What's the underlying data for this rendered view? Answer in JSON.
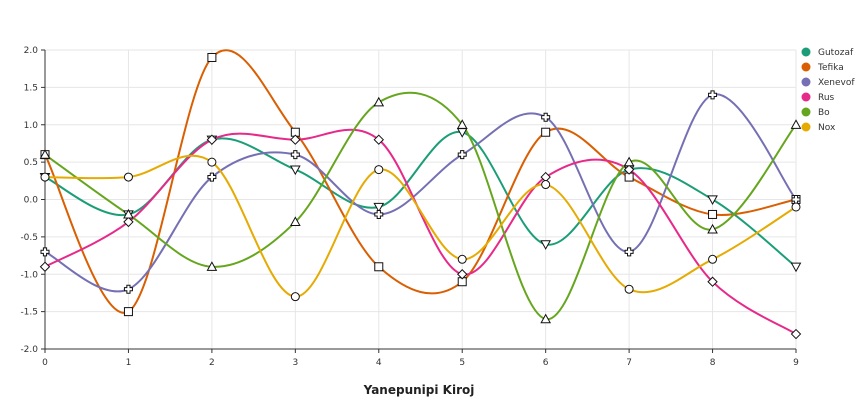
{
  "chart_data": {
    "type": "line",
    "title": "",
    "xlabel": "Yanepunipi Kiroj",
    "ylabel": "",
    "xlim": [
      0,
      9
    ],
    "ylim": [
      -2.0,
      2.0
    ],
    "x": [
      0,
      1,
      2,
      3,
      4,
      5,
      6,
      7,
      8,
      9
    ],
    "x_ticks": [
      "0",
      "1",
      "2",
      "3",
      "4",
      "5",
      "6",
      "7",
      "8",
      "9"
    ],
    "y_ticks": [
      "-2.0",
      "-1.5",
      "-1.0",
      "-0.5",
      "0.0",
      "0.5",
      "1.0",
      "1.5",
      "2.0"
    ],
    "y_tick_values": [
      -2.0,
      -1.5,
      -1.0,
      -0.5,
      0.0,
      0.5,
      1.0,
      1.5,
      2.0
    ],
    "grid": true,
    "smooth": true,
    "legend_position": "right",
    "series": [
      {
        "name": "Gutozaf",
        "color": "#1b9e77",
        "marker": "triangle-down",
        "values": [
          0.3,
          -0.2,
          0.8,
          0.4,
          -0.1,
          0.9,
          -0.6,
          0.4,
          0.0,
          -0.9
        ]
      },
      {
        "name": "Tefika",
        "color": "#d95f02",
        "marker": "square",
        "values": [
          0.6,
          -1.5,
          1.9,
          0.9,
          -0.9,
          -1.1,
          0.9,
          0.3,
          -0.2,
          0.0
        ]
      },
      {
        "name": "Xenevof",
        "color": "#7570b3",
        "marker": "cross",
        "values": [
          -0.7,
          -1.2,
          0.3,
          0.6,
          -0.2,
          0.6,
          1.1,
          -0.7,
          1.4,
          0.0
        ]
      },
      {
        "name": "Rus",
        "color": "#e7298a",
        "marker": "diamond",
        "values": [
          -0.9,
          -0.3,
          0.8,
          0.8,
          0.8,
          -1.0,
          0.3,
          0.4,
          -1.1,
          -1.8
        ]
      },
      {
        "name": "Bo",
        "color": "#66a61e",
        "marker": "triangle-up",
        "values": [
          0.6,
          -0.2,
          -0.9,
          -0.3,
          1.3,
          1.0,
          -1.6,
          0.5,
          -0.4,
          1.0
        ]
      },
      {
        "name": "Nox",
        "color": "#e6ab02",
        "marker": "circle",
        "values": [
          0.3,
          0.3,
          0.5,
          -1.3,
          0.4,
          -0.8,
          0.2,
          -1.2,
          -0.8,
          -0.1
        ]
      }
    ],
    "colors": {
      "grid": "#e6e6e6",
      "axis": "#333333",
      "background": "#ffffff"
    }
  }
}
